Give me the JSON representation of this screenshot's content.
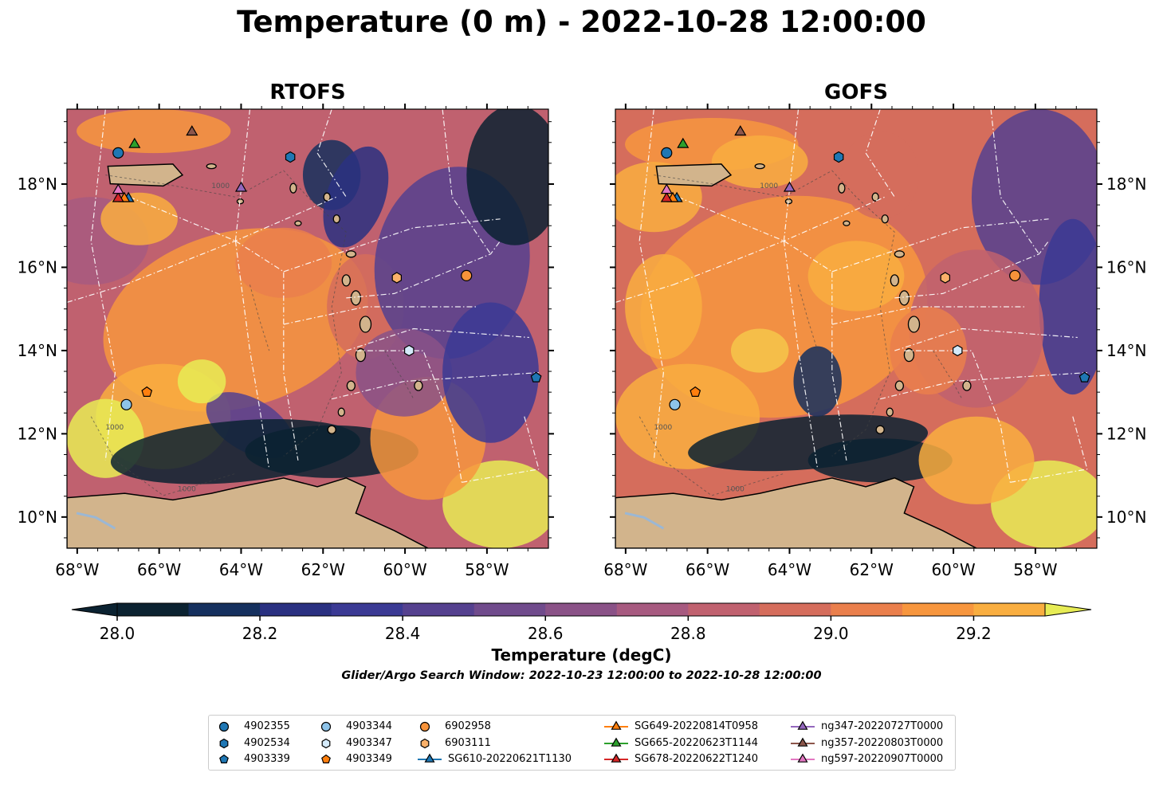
{
  "title": "Temperature (0 m) - 2022-10-28 12:00:00",
  "panels": [
    {
      "title": "RTOFS"
    },
    {
      "title": "GOFS"
    }
  ],
  "colorbar": {
    "label": "Temperature (degC)",
    "ticks": [
      "28.0",
      "28.2",
      "28.4",
      "28.6",
      "28.8",
      "29.0",
      "29.2"
    ],
    "levels": [
      28.0,
      28.1,
      28.2,
      28.3,
      28.4,
      28.5,
      28.6,
      28.7,
      28.8,
      28.9,
      29.0,
      29.1,
      29.2,
      29.3
    ],
    "colors": [
      "#0b2231",
      "#15305e",
      "#2a3181",
      "#3b3a94",
      "#55418f",
      "#704b8c",
      "#8a5287",
      "#a75a80",
      "#c0616f",
      "#d56d5c",
      "#ea7f4c",
      "#f7963e",
      "#f9ae40",
      "#f6c74a",
      "#e7ec55"
    ]
  },
  "search_window": "Glider/Argo Search Window: 2022-10-23 12:00:00 to 2022-10-28 12:00:00",
  "axes": {
    "x_ticks": [
      "68°W",
      "66°W",
      "64°W",
      "62°W",
      "60°W",
      "58°W"
    ],
    "y_ticks": [
      "10°N",
      "12°N",
      "14°N",
      "16°N",
      "18°N"
    ],
    "contour_label": "1000"
  },
  "chart_data": {
    "type": "heatmap",
    "variable": "Temperature (0 m)",
    "units": "degC",
    "xlim": [
      -68.25,
      -56.5
    ],
    "ylim": [
      9.25,
      19.8
    ],
    "x_ticks": [
      -68,
      -66,
      -64,
      -62,
      -60,
      -58
    ],
    "y_ticks": [
      10,
      12,
      14,
      16,
      18
    ],
    "color_range": [
      28.0,
      29.3
    ],
    "panels": [
      "RTOFS",
      "GOFS"
    ],
    "markers": [
      {
        "name": "4902355",
        "shape": "circle",
        "color": "#1f77b4",
        "lon": -67.0,
        "lat": 18.75
      },
      {
        "name": "4902534",
        "shape": "hexagon",
        "color": "#1f77b4",
        "lon": -62.8,
        "lat": 18.65
      },
      {
        "name": "4903339",
        "shape": "pentagon",
        "color": "#1f77b4",
        "lon": -56.8,
        "lat": 13.35
      },
      {
        "name": "4903344",
        "shape": "circle",
        "color": "#8ec4ea",
        "lon": -66.8,
        "lat": 12.7
      },
      {
        "name": "4903347",
        "shape": "hexagon",
        "color": "#d4eafa",
        "lon": -59.9,
        "lat": 14.0
      },
      {
        "name": "4903349",
        "shape": "pentagon",
        "color": "#ff7f0e",
        "lon": -66.3,
        "lat": 13.0
      },
      {
        "name": "6902958",
        "shape": "circle",
        "color": "#f7933a",
        "lon": -58.5,
        "lat": 15.8
      },
      {
        "name": "6903111",
        "shape": "hexagon",
        "color": "#fbb16a",
        "lon": -60.2,
        "lat": 15.75
      },
      {
        "name": "SG610-20220621T1130",
        "shape": "triangle",
        "color": "#1f77b4",
        "lon": -66.75,
        "lat": 17.65
      },
      {
        "name": "SG649-20220814T0958",
        "shape": "triangle",
        "color": "#ff7f0e",
        "lon": -66.85,
        "lat": 17.65
      },
      {
        "name": "SG665-20220623T1144",
        "shape": "triangle",
        "color": "#2ca02c",
        "lon": -66.6,
        "lat": 18.95
      },
      {
        "name": "SG678-20220622T1240",
        "shape": "triangle",
        "color": "#d62728",
        "lon": -67.0,
        "lat": 17.65
      },
      {
        "name": "ng347-20220727T0000",
        "shape": "triangle",
        "color": "#9467bd",
        "lon": -64.0,
        "lat": 17.9
      },
      {
        "name": "ng357-20220803T0000",
        "shape": "triangle",
        "color": "#8c564b",
        "lon": -65.2,
        "lat": 19.25
      },
      {
        "name": "ng597-20220907T0000",
        "shape": "triangle",
        "color": "#e377c2",
        "lon": -67.0,
        "lat": 17.85
      }
    ]
  },
  "legend": {
    "columns": [
      [
        {
          "label": "4902355",
          "shape": "circle",
          "color": "#1f77b4",
          "line": false
        },
        {
          "label": "4902534",
          "shape": "hexagon",
          "color": "#1f77b4",
          "line": false
        },
        {
          "label": "4903339",
          "shape": "pentagon",
          "color": "#1f77b4",
          "line": false
        }
      ],
      [
        {
          "label": "4903344",
          "shape": "circle",
          "color": "#8ec4ea",
          "line": false
        },
        {
          "label": "4903347",
          "shape": "hexagon",
          "color": "#d4eafa",
          "line": false
        },
        {
          "label": "4903349",
          "shape": "pentagon",
          "color": "#ff7f0e",
          "line": false
        }
      ],
      [
        {
          "label": "6902958",
          "shape": "circle",
          "color": "#f7933a",
          "line": false
        },
        {
          "label": "6903111",
          "shape": "hexagon",
          "color": "#fbb16a",
          "line": false
        },
        {
          "label": "SG610-20220621T1130",
          "shape": "triangle",
          "color": "#1f77b4",
          "line": true
        }
      ],
      [
        {
          "label": "SG649-20220814T0958",
          "shape": "triangle",
          "color": "#ff7f0e",
          "line": true
        },
        {
          "label": "SG665-20220623T1144",
          "shape": "triangle",
          "color": "#2ca02c",
          "line": true
        },
        {
          "label": "SG678-20220622T1240",
          "shape": "triangle",
          "color": "#d62728",
          "line": true
        }
      ],
      [
        {
          "label": "ng347-20220727T0000",
          "shape": "triangle",
          "color": "#9467bd",
          "line": true
        },
        {
          "label": "ng357-20220803T0000",
          "shape": "triangle",
          "color": "#8c564b",
          "line": true
        },
        {
          "label": "ng597-20220907T0000",
          "shape": "triangle",
          "color": "#e377c2",
          "line": true
        }
      ]
    ]
  }
}
